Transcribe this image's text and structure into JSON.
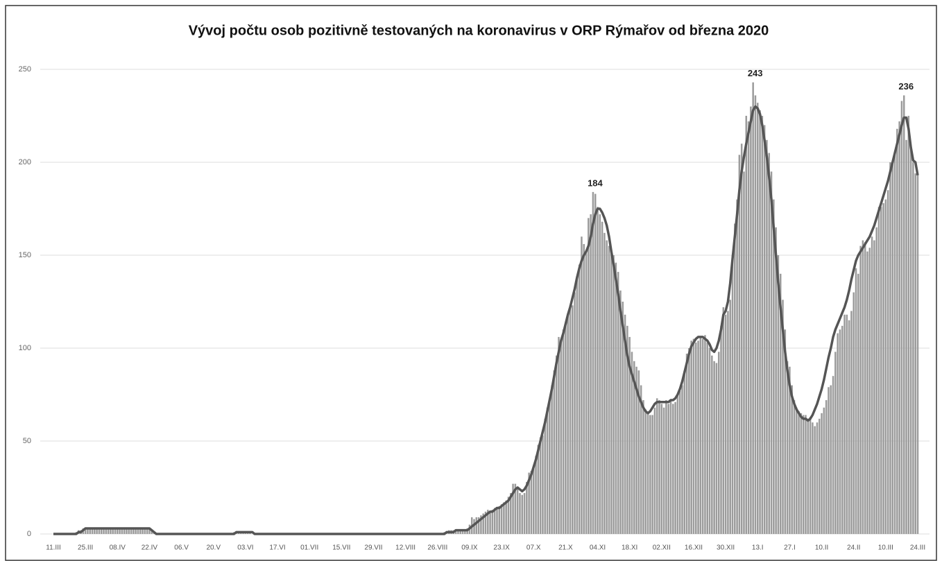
{
  "chart_data": {
    "type": "bar",
    "title": "Vývoj počtu osob pozitivně testovaných na koronavirus v ORP Rýmařov od března 2020",
    "categories": [
      "11.III",
      null,
      null,
      null,
      null,
      null,
      null,
      null,
      null,
      null,
      null,
      null,
      null,
      null,
      "25.III",
      null,
      null,
      null,
      null,
      null,
      null,
      null,
      null,
      null,
      null,
      null,
      null,
      null,
      "08.IV",
      null,
      null,
      null,
      null,
      null,
      null,
      null,
      null,
      null,
      null,
      null,
      null,
      null,
      "22.IV",
      null,
      null,
      null,
      null,
      null,
      null,
      null,
      null,
      null,
      null,
      null,
      null,
      null,
      "06.V",
      null,
      null,
      null,
      null,
      null,
      null,
      null,
      null,
      null,
      null,
      null,
      null,
      null,
      "20.V",
      null,
      null,
      null,
      null,
      null,
      null,
      null,
      null,
      null,
      null,
      null,
      null,
      null,
      "03.VI",
      null,
      null,
      null,
      null,
      null,
      null,
      null,
      null,
      null,
      null,
      null,
      null,
      null,
      "17.VI",
      null,
      null,
      null,
      null,
      null,
      null,
      null,
      null,
      null,
      null,
      null,
      null,
      null,
      "01.VII",
      null,
      null,
      null,
      null,
      null,
      null,
      null,
      null,
      null,
      null,
      null,
      null,
      null,
      "15.VII",
      null,
      null,
      null,
      null,
      null,
      null,
      null,
      null,
      null,
      null,
      null,
      null,
      null,
      "29.VII",
      null,
      null,
      null,
      null,
      null,
      null,
      null,
      null,
      null,
      null,
      null,
      null,
      null,
      "12.VIII",
      null,
      null,
      null,
      null,
      null,
      null,
      null,
      null,
      null,
      null,
      null,
      null,
      null,
      "26.VIII",
      null,
      null,
      null,
      null,
      null,
      null,
      null,
      null,
      null,
      null,
      null,
      null,
      null,
      "09.IX",
      null,
      null,
      null,
      null,
      null,
      null,
      null,
      null,
      null,
      null,
      null,
      null,
      null,
      "23.IX",
      null,
      null,
      null,
      null,
      null,
      null,
      null,
      null,
      null,
      null,
      null,
      null,
      null,
      "07.X",
      null,
      null,
      null,
      null,
      null,
      null,
      null,
      null,
      null,
      null,
      null,
      null,
      null,
      "21.X",
      null,
      null,
      null,
      null,
      null,
      null,
      null,
      null,
      null,
      null,
      null,
      null,
      null,
      "04.XI",
      null,
      null,
      null,
      null,
      null,
      null,
      null,
      null,
      null,
      null,
      null,
      null,
      null,
      "18.XI",
      null,
      null,
      null,
      null,
      null,
      null,
      null,
      null,
      null,
      null,
      null,
      null,
      null,
      "02.XII",
      null,
      null,
      null,
      null,
      null,
      null,
      null,
      null,
      null,
      null,
      null,
      null,
      null,
      "16.XII",
      null,
      null,
      null,
      null,
      null,
      null,
      null,
      null,
      null,
      null,
      null,
      null,
      null,
      "30.XII",
      null,
      null,
      null,
      null,
      null,
      null,
      null,
      null,
      null,
      null,
      null,
      null,
      null,
      "13.I",
      null,
      null,
      null,
      null,
      null,
      null,
      null,
      null,
      null,
      null,
      null,
      null,
      null,
      "27.I",
      null,
      null,
      null,
      null,
      null,
      null,
      null,
      null,
      null,
      null,
      null,
      null,
      null,
      "10.II",
      null,
      null,
      null,
      null,
      null,
      null,
      null,
      null,
      null,
      null,
      null,
      null,
      null,
      "24.II",
      null,
      null,
      null,
      null,
      null,
      null,
      null,
      null,
      null,
      null,
      null,
      null,
      null,
      "10.III",
      null,
      null,
      null,
      null,
      null,
      null,
      null,
      null,
      null,
      null,
      null,
      null,
      null,
      "24.III"
    ],
    "series": [
      {
        "type": "bar",
        "color": "#9b9b9b",
        "values": [
          0,
          0,
          0,
          0,
          0,
          0,
          0,
          0,
          0,
          0,
          1,
          2,
          2,
          3,
          3,
          3,
          3,
          3,
          3,
          3,
          3,
          3,
          3,
          3,
          3,
          3,
          3,
          3,
          3,
          3,
          3,
          3,
          3,
          3,
          3,
          3,
          3,
          3,
          3,
          3,
          3,
          3,
          3,
          2,
          1,
          0,
          0,
          0,
          0,
          0,
          0,
          0,
          0,
          0,
          0,
          0,
          0,
          0,
          0,
          0,
          0,
          0,
          0,
          0,
          0,
          0,
          0,
          0,
          0,
          0,
          0,
          0,
          0,
          0,
          0,
          0,
          0,
          0,
          0,
          1,
          1,
          1,
          1,
          1,
          1,
          1,
          1,
          0,
          0,
          0,
          0,
          0,
          0,
          0,
          0,
          0,
          0,
          0,
          0,
          0,
          0,
          0,
          0,
          0,
          0,
          0,
          0,
          0,
          0,
          0,
          0,
          0,
          0,
          0,
          0,
          0,
          0,
          0,
          0,
          0,
          0,
          0,
          0,
          0,
          0,
          0,
          0,
          0,
          0,
          0,
          0,
          0,
          0,
          0,
          0,
          0,
          0,
          0,
          0,
          0,
          0,
          0,
          0,
          0,
          0,
          0,
          0,
          0,
          0,
          0,
          0,
          0,
          0,
          0,
          0,
          0,
          0,
          0,
          0,
          0,
          0,
          0,
          0,
          0,
          0,
          0,
          0,
          0,
          0,
          0,
          0,
          1,
          1,
          2,
          2,
          2,
          2,
          2,
          2,
          2,
          2,
          3,
          5,
          9,
          8,
          9,
          9,
          10,
          11,
          12,
          13,
          12,
          13,
          14,
          14,
          15,
          16,
          17,
          18,
          20,
          22,
          27,
          27,
          25,
          22,
          21,
          22,
          28,
          33,
          34,
          37,
          42,
          48,
          52,
          53,
          62,
          68,
          73,
          80,
          88,
          96,
          106,
          104,
          110,
          113,
          118,
          123,
          123,
          130,
          138,
          145,
          160,
          156,
          152,
          170,
          172,
          184,
          183,
          176,
          172,
          168,
          162,
          158,
          155,
          153,
          150,
          146,
          141,
          131,
          125,
          118,
          112,
          106,
          98,
          93,
          90,
          88,
          80,
          72,
          67,
          65,
          64,
          64,
          68,
          73,
          72,
          70,
          68,
          72,
          70,
          72,
          70,
          71,
          75,
          77,
          80,
          87,
          97,
          100,
          104,
          105,
          103,
          104,
          106,
          105,
          107,
          103,
          100,
          96,
          93,
          92,
          98,
          112,
          122,
          118,
          120,
          126,
          150,
          167,
          180,
          204,
          210,
          195,
          225,
          222,
          230,
          243,
          236,
          232,
          228,
          225,
          220,
          212,
          205,
          195,
          180,
          165,
          150,
          140,
          126,
          110,
          93,
          90,
          80,
          72,
          68,
          66,
          65,
          64,
          64,
          62,
          63,
          60,
          58,
          60,
          62,
          65,
          68,
          72,
          79,
          80,
          85,
          98,
          108,
          110,
          112,
          118,
          118,
          115,
          120,
          130,
          143,
          140,
          155,
          158,
          157,
          152,
          154,
          160,
          158,
          165,
          176,
          176,
          178,
          180,
          185,
          200,
          199,
          205,
          218,
          222,
          233,
          236,
          212,
          225,
          209,
          200,
          194,
          193
        ]
      },
      {
        "type": "line",
        "color": "#555555",
        "values": [
          0,
          0,
          0,
          0,
          0,
          0,
          0,
          0,
          0,
          0,
          0,
          1,
          1,
          2,
          3,
          3,
          3,
          3,
          3,
          3,
          3,
          3,
          3,
          3,
          3,
          3,
          3,
          3,
          3,
          3,
          3,
          3,
          3,
          3,
          3,
          3,
          3,
          3,
          3,
          3,
          3,
          3,
          3,
          2,
          1,
          0,
          0,
          0,
          0,
          0,
          0,
          0,
          0,
          0,
          0,
          0,
          0,
          0,
          0,
          0,
          0,
          0,
          0,
          0,
          0,
          0,
          0,
          0,
          0,
          0,
          0,
          0,
          0,
          0,
          0,
          0,
          0,
          0,
          0,
          0,
          1,
          1,
          1,
          1,
          1,
          1,
          1,
          1,
          0,
          0,
          0,
          0,
          0,
          0,
          0,
          0,
          0,
          0,
          0,
          0,
          0,
          0,
          0,
          0,
          0,
          0,
          0,
          0,
          0,
          0,
          0,
          0,
          0,
          0,
          0,
          0,
          0,
          0,
          0,
          0,
          0,
          0,
          0,
          0,
          0,
          0,
          0,
          0,
          0,
          0,
          0,
          0,
          0,
          0,
          0,
          0,
          0,
          0,
          0,
          0,
          0,
          0,
          0,
          0,
          0,
          0,
          0,
          0,
          0,
          0,
          0,
          0,
          0,
          0,
          0,
          0,
          0,
          0,
          0,
          0,
          0,
          0,
          0,
          0,
          0,
          0,
          0,
          0,
          0,
          0,
          0,
          0,
          1,
          1,
          1,
          1,
          2,
          2,
          2,
          2,
          2,
          2,
          3,
          4,
          5,
          6,
          7,
          8,
          9,
          10,
          11,
          12,
          12,
          13,
          14,
          14,
          15,
          16,
          17,
          18,
          20,
          22,
          24,
          25,
          24,
          23,
          24,
          26,
          29,
          32,
          36,
          40,
          45,
          50,
          55,
          60,
          66,
          72,
          78,
          85,
          92,
          98,
          104,
          108,
          113,
          118,
          122,
          127,
          132,
          138,
          143,
          147,
          150,
          152,
          155,
          160,
          167,
          172,
          175,
          175,
          173,
          170,
          166,
          160,
          152,
          145,
          137,
          129,
          120,
          112,
          104,
          96,
          90,
          86,
          82,
          78,
          74,
          71,
          68,
          66,
          65,
          66,
          68,
          70,
          71,
          71,
          71,
          71,
          71,
          71,
          72,
          72,
          73,
          75,
          78,
          82,
          87,
          92,
          97,
          101,
          103,
          105,
          106,
          106,
          106,
          105,
          104,
          102,
          99,
          98,
          100,
          104,
          110,
          118,
          120,
          125,
          135,
          148,
          160,
          172,
          185,
          195,
          203,
          210,
          216,
          222,
          228,
          230,
          229,
          226,
          220,
          212,
          203,
          192,
          180,
          165,
          150,
          135,
          122,
          110,
          98,
          88,
          80,
          74,
          70,
          67,
          65,
          63,
          62,
          62,
          61,
          62,
          64,
          67,
          70,
          74,
          78,
          83,
          89,
          95,
          100,
          106,
          110,
          113,
          116,
          119,
          122,
          126,
          131,
          137,
          142,
          147,
          150,
          152,
          154,
          156,
          158,
          160,
          163,
          166,
          170,
          174,
          178,
          182,
          186,
          190,
          195,
          200,
          205,
          210,
          215,
          220,
          224,
          224,
          218,
          208,
          201,
          200,
          193
        ]
      }
    ],
    "annotations": [
      {
        "index": 236,
        "text": "184"
      },
      {
        "index": 306,
        "text": "243"
      },
      {
        "index": 372,
        "text": "236"
      }
    ],
    "ylim": [
      0,
      250
    ],
    "yticks": [
      0,
      50,
      100,
      150,
      200,
      250
    ],
    "grid": true
  }
}
